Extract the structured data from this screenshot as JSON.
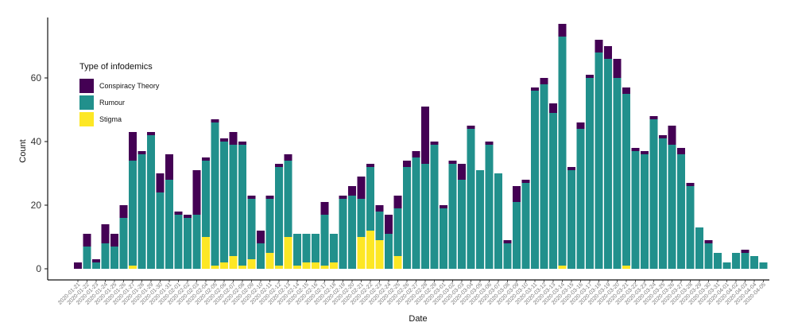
{
  "chart_data": {
    "type": "bar",
    "stacked": true,
    "title": "",
    "xlabel": "Date",
    "ylabel": "Count",
    "ylim": [
      0,
      76
    ],
    "yticks": [
      0,
      20,
      40,
      60
    ],
    "legend": {
      "title": "Type of infodemics",
      "position": "top-left"
    },
    "categories": [
      "2020-01-21",
      "2020-01-22",
      "2020-01-23",
      "2020-01-24",
      "2020-01-25",
      "2020-01-26",
      "2020-01-27",
      "2020-01-28",
      "2020-01-29",
      "2020-01-30",
      "2020-01-31",
      "2020-02-01",
      "2020-02-02",
      "2020-02-03",
      "2020-02-04",
      "2020-02-05",
      "2020-02-06",
      "2020-02-07",
      "2020-02-08",
      "2020-02-09",
      "2020-02-10",
      "2020-02-11",
      "2020-02-12",
      "2020-02-13",
      "2020-02-14",
      "2020-02-15",
      "2020-02-16",
      "2020-02-17",
      "2020-02-18",
      "2020-02-19",
      "2020-02-20",
      "2020-02-21",
      "2020-02-22",
      "2020-02-23",
      "2020-02-24",
      "2020-02-25",
      "2020-02-26",
      "2020-02-27",
      "2020-02-28",
      "2020-02-29",
      "2020-03-01",
      "2020-03-02",
      "2020-03-03",
      "2020-03-04",
      "2020-03-05",
      "2020-03-06",
      "2020-03-07",
      "2020-03-08",
      "2020-03-09",
      "2020-03-10",
      "2020-03-11",
      "2020-03-12",
      "2020-03-13",
      "2020-03-14",
      "2020-03-15",
      "2020-03-16",
      "2020-03-17",
      "2020-03-18",
      "2020-03-19",
      "2020-03-20",
      "2020-03-21",
      "2020-03-22",
      "2020-03-23",
      "2020-03-24",
      "2020-03-25",
      "2020-03-26",
      "2020-03-27",
      "2020-03-28",
      "2020-03-29",
      "2020-03-30",
      "2020-03-31",
      "2020-04-01",
      "2020-04-02",
      "2020-04-03",
      "2020-04-04",
      "2020-04-05"
    ],
    "xtick_labels": [
      "2020-01-21",
      "2020-01-22",
      "2020-01-23",
      "2020-01-24",
      "2020-01-25",
      "2020-01-26",
      "2020-01-27",
      "2020-01-28",
      "2020-01-29",
      "2020-01-30",
      "2020-01-31",
      "2020-02-01",
      "2020-02-02",
      "2020-02-03",
      "2020-02-04",
      "2020-02-05",
      "2020-02-06",
      "2020-02-07",
      "2020-02-08",
      "2020-02-09",
      "2020-02-10",
      "2020-02-11",
      "2020-02-12",
      "2020-02-13",
      "2020-02-14",
      "2020-02-15",
      "2020-02-16",
      "2020-02-17",
      "2020-02-18",
      "2020-02-19",
      "2020-02-20",
      "2020-02-21",
      "2020-02-22",
      "2020-02-23",
      "2020-02-24",
      "2020-02-25",
      "2020-02-26",
      "2020-02-27",
      "2020-02-28",
      "2020-02-29",
      "2020-03-01",
      "2020-03-02",
      "2020-03-03",
      "2020-03-04",
      "2020-03-05",
      "2020-03-06",
      "2020-03-07",
      "2020-03-08",
      "2020-03-09",
      "2020-03-10",
      "2020-03-11",
      "2020-03-12",
      "2020-03-13",
      "2020-03-14",
      "2020-03-15",
      "2020-03-16",
      "2020-03-17",
      "2020-03-18",
      "2020-03-19",
      "2020-03-20",
      "2020-03-21",
      "2020-03-22",
      "2020-03-23",
      "2020-03-24",
      "2020-03-25",
      "2020-03-26",
      "2020-03-27",
      "2020-03-28",
      "2020-03-29",
      "2020-03-30",
      "2020-03-31",
      "2020-04-01",
      "2020-04-02",
      "2020-04-03",
      "2020-04-04",
      "2020-04-05"
    ],
    "series": [
      {
        "name": "Stigma",
        "color": "#FDE725",
        "values": [
          0,
          0,
          0,
          0,
          0,
          0,
          1,
          0,
          0,
          0,
          0,
          0,
          0,
          0,
          10,
          1,
          2,
          4,
          1,
          3,
          0,
          5,
          1,
          10,
          1,
          2,
          2,
          1,
          2,
          0,
          0,
          10,
          12,
          9,
          0,
          4,
          0,
          0,
          0,
          0,
          0,
          0,
          0,
          0,
          0,
          0,
          0,
          0,
          0,
          0,
          0,
          0,
          0,
          1,
          0,
          0,
          0,
          0,
          0,
          0,
          1,
          0,
          0,
          0,
          0,
          0,
          0,
          0,
          0,
          0,
          0,
          0,
          0,
          0,
          0,
          0
        ]
      },
      {
        "name": "Rumour",
        "color": "#21908C",
        "values": [
          0,
          7,
          2,
          8,
          7,
          16,
          33,
          36,
          42,
          24,
          28,
          17,
          16,
          17,
          24,
          45,
          38,
          35,
          38,
          19,
          8,
          17,
          31,
          24,
          10,
          9,
          9,
          16,
          9,
          22,
          23,
          12,
          20,
          9,
          11,
          15,
          32,
          35,
          33,
          39,
          19,
          33,
          28,
          44,
          31,
          39,
          30,
          8,
          21,
          27,
          56,
          58,
          49,
          72,
          31,
          44,
          60,
          68,
          66,
          60,
          54,
          37,
          36,
          47,
          41,
          39,
          36,
          26,
          13,
          8,
          5,
          2,
          5,
          5,
          4,
          2
        ]
      },
      {
        "name": "Conspiracy Theory",
        "color": "#440154",
        "values": [
          2,
          4,
          1,
          6,
          4,
          4,
          9,
          1,
          1,
          6,
          8,
          1,
          1,
          14,
          1,
          1,
          1,
          4,
          1,
          1,
          4,
          1,
          1,
          2,
          0,
          0,
          0,
          4,
          0,
          1,
          3,
          7,
          1,
          2,
          6,
          4,
          2,
          2,
          18,
          1,
          1,
          1,
          5,
          1,
          0,
          1,
          0,
          1,
          5,
          1,
          1,
          2,
          3,
          4,
          1,
          2,
          1,
          4,
          4,
          6,
          2,
          1,
          1,
          1,
          1,
          6,
          2,
          1,
          0,
          1,
          0,
          0,
          0,
          1,
          0,
          0
        ]
      }
    ],
    "legend_order": [
      "Conspiracy Theory",
      "Rumour",
      "Stigma"
    ]
  }
}
